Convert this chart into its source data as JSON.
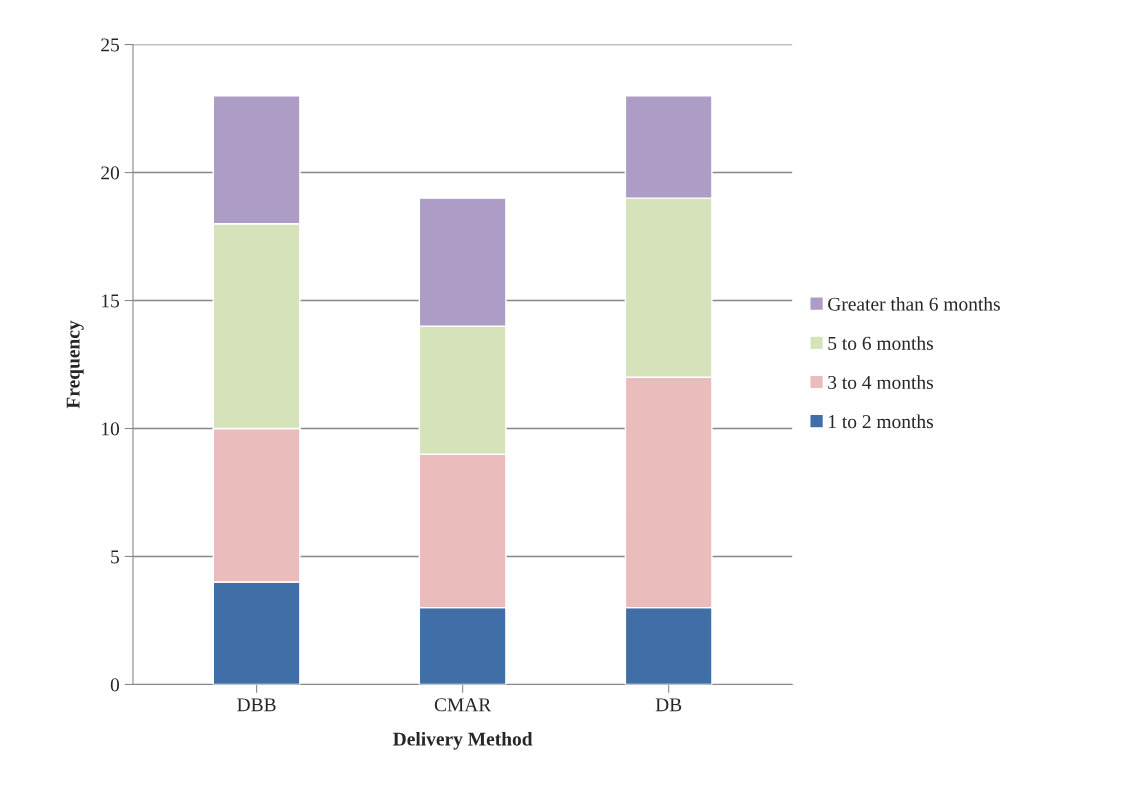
{
  "chart_data": {
    "type": "bar",
    "stacked": true,
    "xlabel": "Delivery Method",
    "ylabel": "Frequency",
    "categories": [
      "DBB",
      "CMAR",
      "DB"
    ],
    "series": [
      {
        "name": "1 to 2 months",
        "color": "#3f6fa6",
        "values": [
          4,
          3,
          3
        ]
      },
      {
        "name": "3 to 4 months",
        "color": "#ebbcbc",
        "values": [
          6,
          6,
          9
        ]
      },
      {
        "name": "5 to 6 months",
        "color": "#d6e2ba",
        "values": [
          8,
          5,
          7
        ]
      },
      {
        "name": "Greater than 6 months",
        "color": "#ad9dc6",
        "values": [
          5,
          5,
          4
        ]
      }
    ],
    "ylim": [
      0,
      25
    ],
    "yticks": [
      0,
      5,
      10,
      15,
      20,
      25
    ],
    "grid": "y",
    "legend": "right"
  }
}
